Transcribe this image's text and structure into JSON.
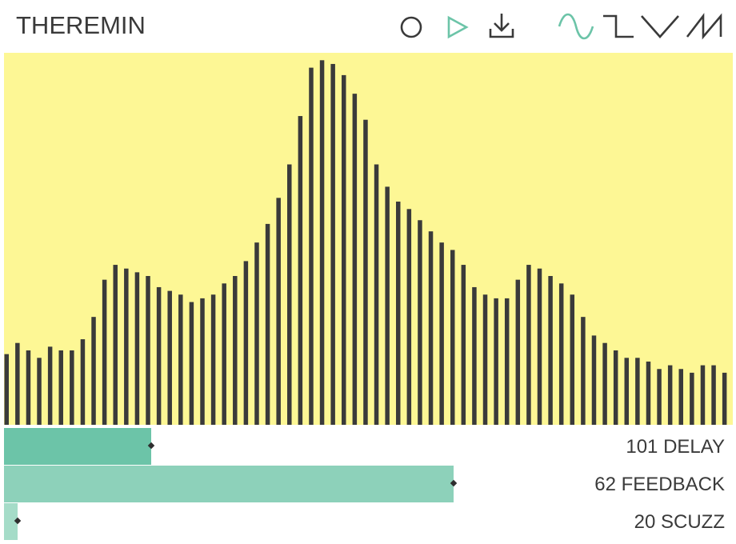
{
  "header": {
    "title": "THEREMIN"
  },
  "toolbar": {
    "icons": [
      "record-icon",
      "play-icon",
      "download-icon"
    ],
    "waveforms": [
      "sine-wave-icon",
      "square-wave-icon",
      "triangle-wave-icon",
      "sawtooth-wave-icon"
    ],
    "selected_waveform": "sine-wave-icon",
    "colors": {
      "icon": "#3a3a3a",
      "accent": "#6cc4a8"
    }
  },
  "visualizer": {
    "background": "#fdf795",
    "bar_color": "#3a3a3a",
    "levels": [
      0.19,
      0.22,
      0.2,
      0.18,
      0.21,
      0.2,
      0.2,
      0.23,
      0.29,
      0.39,
      0.43,
      0.42,
      0.41,
      0.4,
      0.37,
      0.36,
      0.35,
      0.33,
      0.34,
      0.35,
      0.38,
      0.4,
      0.44,
      0.49,
      0.54,
      0.61,
      0.7,
      0.83,
      0.96,
      0.98,
      0.97,
      0.94,
      0.89,
      0.82,
      0.7,
      0.64,
      0.6,
      0.58,
      0.55,
      0.52,
      0.49,
      0.47,
      0.43,
      0.37,
      0.35,
      0.34,
      0.34,
      0.39,
      0.43,
      0.42,
      0.4,
      0.38,
      0.35,
      0.29,
      0.24,
      0.22,
      0.2,
      0.18,
      0.18,
      0.17,
      0.15,
      0.16,
      0.15,
      0.14,
      0.16,
      0.16,
      0.14
    ]
  },
  "sliders": [
    {
      "name": "delay",
      "value": "101",
      "label": "DELAY",
      "fraction": 0.202,
      "color": "#6cc4a8"
    },
    {
      "name": "feedback",
      "value": "62",
      "label": "FEEDBACK",
      "fraction": 0.617,
      "color": "#8dd1ba"
    },
    {
      "name": "scuzz",
      "value": "20",
      "label": "SCUZZ",
      "fraction": 0.019,
      "color": "#a5dcc8"
    }
  ]
}
